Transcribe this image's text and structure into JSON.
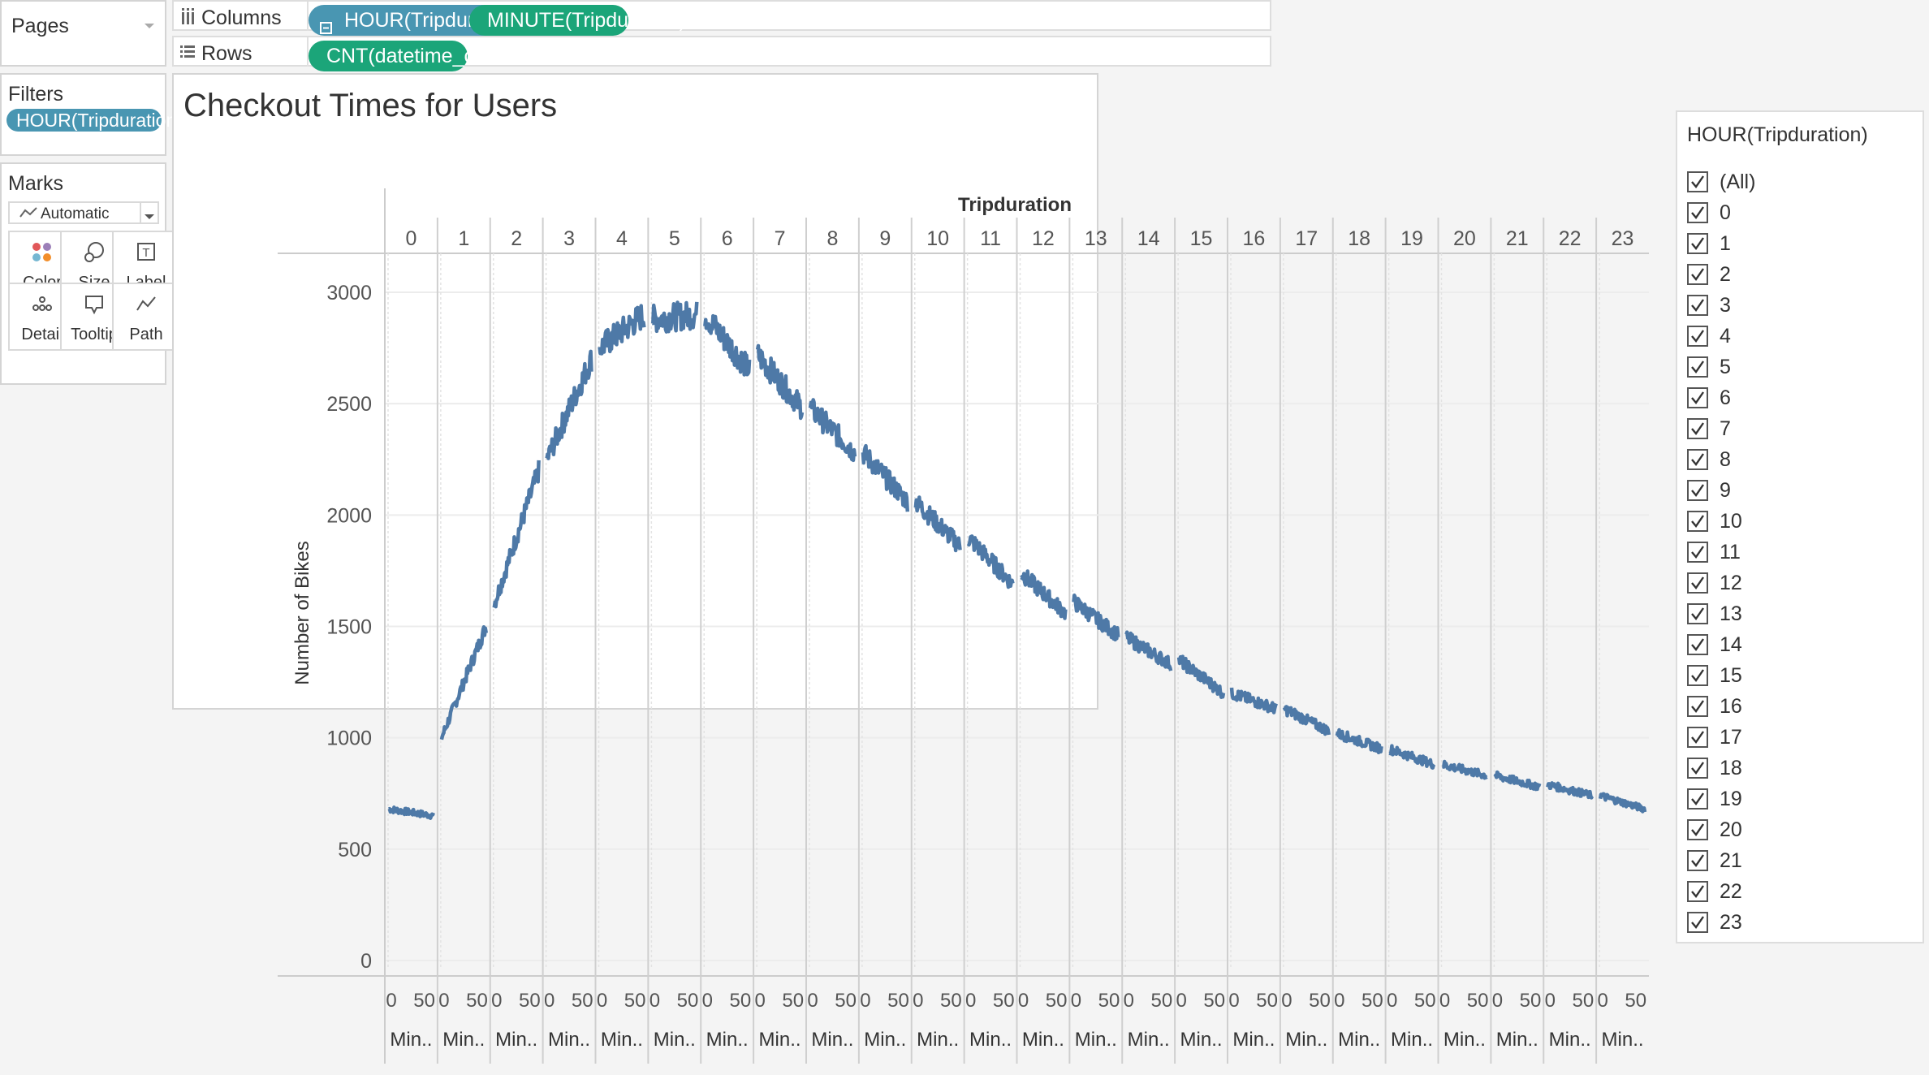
{
  "pages": {
    "title": "Pages"
  },
  "columns": {
    "label": "Columns",
    "pills": [
      "HOUR(Tripduration)",
      "MINUTE(Tripduration)"
    ]
  },
  "rows": {
    "label": "Rows",
    "pills": [
      "CNT(datetime_citibik.."
    ]
  },
  "filters": {
    "title": "Filters",
    "pills": [
      "HOUR(Tripduration)"
    ]
  },
  "marks": {
    "title": "Marks",
    "type_value": "Automatic",
    "buttons": [
      {
        "label": "Color",
        "icon": "color-icon"
      },
      {
        "label": "Size",
        "icon": "size-icon"
      },
      {
        "label": "Label",
        "icon": "label-icon"
      },
      {
        "label": "Detail",
        "icon": "detail-icon"
      },
      {
        "label": "Tooltip",
        "icon": "tooltip-icon"
      },
      {
        "label": "Path",
        "icon": "path-icon"
      }
    ]
  },
  "filter_card": {
    "title": "HOUR(Tripduration)",
    "items": [
      "(All)",
      "0",
      "1",
      "2",
      "3",
      "4",
      "5",
      "6",
      "7",
      "8",
      "9",
      "10",
      "11",
      "12",
      "13",
      "14",
      "15",
      "16",
      "17",
      "18",
      "19",
      "20",
      "21",
      "22",
      "23"
    ],
    "checked": true
  },
  "colors": {
    "line": "#4e79a7",
    "pill_blue": "#4996b2",
    "pill_green": "#1ba579"
  },
  "chart_data": {
    "type": "line",
    "title": "Checkout Times for Users",
    "xlabel": "Tripduration",
    "ylabel": "Number of Bikes",
    "x_panes": [
      "0",
      "1",
      "2",
      "3",
      "4",
      "5",
      "6",
      "7",
      "8",
      "9",
      "10",
      "11",
      "12",
      "13",
      "14",
      "15",
      "16",
      "17",
      "18",
      "19",
      "20",
      "21",
      "22",
      "23"
    ],
    "pane_tick_labels": [
      "0",
      "50"
    ],
    "pane_axis_title": "Min..",
    "ylim": [
      0,
      3100
    ],
    "yticks": [
      0,
      500,
      1000,
      1500,
      2000,
      2500,
      3000
    ],
    "grid": true,
    "series": [
      {
        "values": [
          [
            680,
            650
          ],
          [
            1000,
            1500
          ],
          [
            1600,
            2200
          ],
          [
            2250,
            2700
          ],
          [
            2750,
            2900
          ],
          [
            2880,
            2900
          ],
          [
            2900,
            2650
          ],
          [
            2720,
            2480
          ],
          [
            2480,
            2280
          ],
          [
            2280,
            2060
          ],
          [
            2060,
            1860
          ],
          [
            1900,
            1690
          ],
          [
            1740,
            1560
          ],
          [
            1610,
            1460
          ],
          [
            1450,
            1330
          ],
          [
            1350,
            1200
          ],
          [
            1200,
            1130
          ],
          [
            1130,
            1030
          ],
          [
            1020,
            950
          ],
          [
            950,
            880
          ],
          [
            880,
            830
          ],
          [
            830,
            780
          ],
          [
            790,
            740
          ],
          [
            740,
            680
          ]
        ]
      }
    ]
  }
}
